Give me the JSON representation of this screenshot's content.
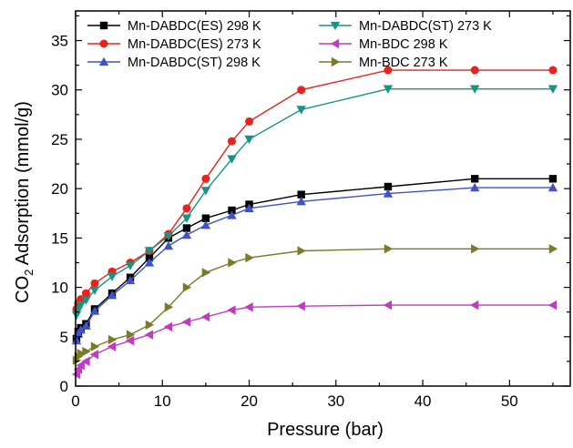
{
  "chart_data": {
    "type": "line",
    "title": "",
    "xlabel": "Pressure (bar)",
    "ylabel_main": "CO",
    "ylabel_sub": "2",
    "ylabel_rest": " Adsorption (mmol/g)",
    "xlim": [
      0,
      57
    ],
    "ylim": [
      0,
      38
    ],
    "xticks": [
      0,
      10,
      20,
      30,
      40,
      50
    ],
    "yticks": [
      0,
      5,
      10,
      15,
      20,
      25,
      30,
      35
    ],
    "grid": false,
    "legend_position": "top-left",
    "series": [
      {
        "name": "Mn-DABDC(ES) 298 K",
        "color": "#000000",
        "marker": "square",
        "x": [
          0.1,
          0.3,
          0.6,
          1.2,
          2.2,
          4.2,
          6.3,
          8.5,
          10.7,
          12.8,
          15,
          18,
          20,
          26,
          36,
          46,
          55
        ],
        "y": [
          4.8,
          5.5,
          5.9,
          6.3,
          7.8,
          9.4,
          11,
          13,
          15,
          16,
          17,
          17.8,
          18.4,
          19.4,
          20.2,
          21,
          21
        ]
      },
      {
        "name": "Mn-DABDC(ES) 273 K",
        "color": "#e8221c",
        "marker": "circle",
        "x": [
          0.1,
          0.3,
          0.6,
          1.2,
          2.2,
          4.2,
          6.3,
          8.5,
          10.7,
          12.8,
          15,
          18,
          20,
          26,
          36,
          46,
          55
        ],
        "y": [
          7.8,
          8.4,
          8.8,
          9.4,
          10.4,
          11.6,
          12.5,
          13.7,
          15.4,
          18,
          21,
          24.8,
          26.8,
          30,
          32,
          32,
          32
        ]
      },
      {
        "name": "Mn-DABDC(ST) 298 K",
        "color": "#3f52c8",
        "marker": "triangle-up",
        "x": [
          0.1,
          0.3,
          0.6,
          1.2,
          2.2,
          4.2,
          6.3,
          8.5,
          10.7,
          12.8,
          15,
          18,
          20,
          26,
          36,
          46,
          55
        ],
        "y": [
          4.6,
          5.3,
          5.7,
          6.1,
          7.6,
          9.2,
          10.7,
          12.5,
          14.2,
          15.3,
          16.3,
          17.3,
          18,
          18.7,
          19.5,
          20.1,
          20.1
        ]
      },
      {
        "name": "Mn-DABDC(ST) 273 K",
        "color": "#1a9480",
        "marker": "triangle-down",
        "x": [
          0.1,
          0.3,
          0.6,
          1.2,
          2.2,
          4.2,
          6.3,
          8.5,
          10.7,
          12.8,
          15,
          18,
          20,
          26,
          36,
          46,
          55
        ],
        "y": [
          7.2,
          7.7,
          8.2,
          8.7,
          9.7,
          11.1,
          12.2,
          13.7,
          15.2,
          17,
          19.8,
          23,
          25,
          28,
          30.1,
          30.1,
          30.1
        ]
      },
      {
        "name": "Mn-BDC 298 K",
        "color": "#c23ac0",
        "marker": "triangle-left",
        "x": [
          0.1,
          0.3,
          0.6,
          1.2,
          2.2,
          4.2,
          6.3,
          8.5,
          10.7,
          12.8,
          15,
          18,
          20,
          26,
          36,
          46,
          55
        ],
        "y": [
          1.2,
          1.7,
          2.1,
          2.5,
          3.2,
          4,
          4.6,
          5.2,
          6,
          6.5,
          7,
          7.7,
          8,
          8.1,
          8.2,
          8.2,
          8.2
        ]
      },
      {
        "name": "Mn-BDC 273 K",
        "color": "#7a7a2a",
        "marker": "triangle-right",
        "x": [
          0.1,
          0.3,
          0.6,
          1.2,
          2.2,
          4.2,
          6.3,
          8.5,
          10.7,
          12.8,
          15,
          18,
          20,
          26,
          36,
          46,
          55
        ],
        "y": [
          2.6,
          3,
          3.3,
          3.5,
          4,
          4.7,
          5.2,
          6.2,
          8,
          10,
          11.5,
          12.5,
          13,
          13.7,
          13.9,
          13.9,
          13.9
        ]
      }
    ]
  }
}
